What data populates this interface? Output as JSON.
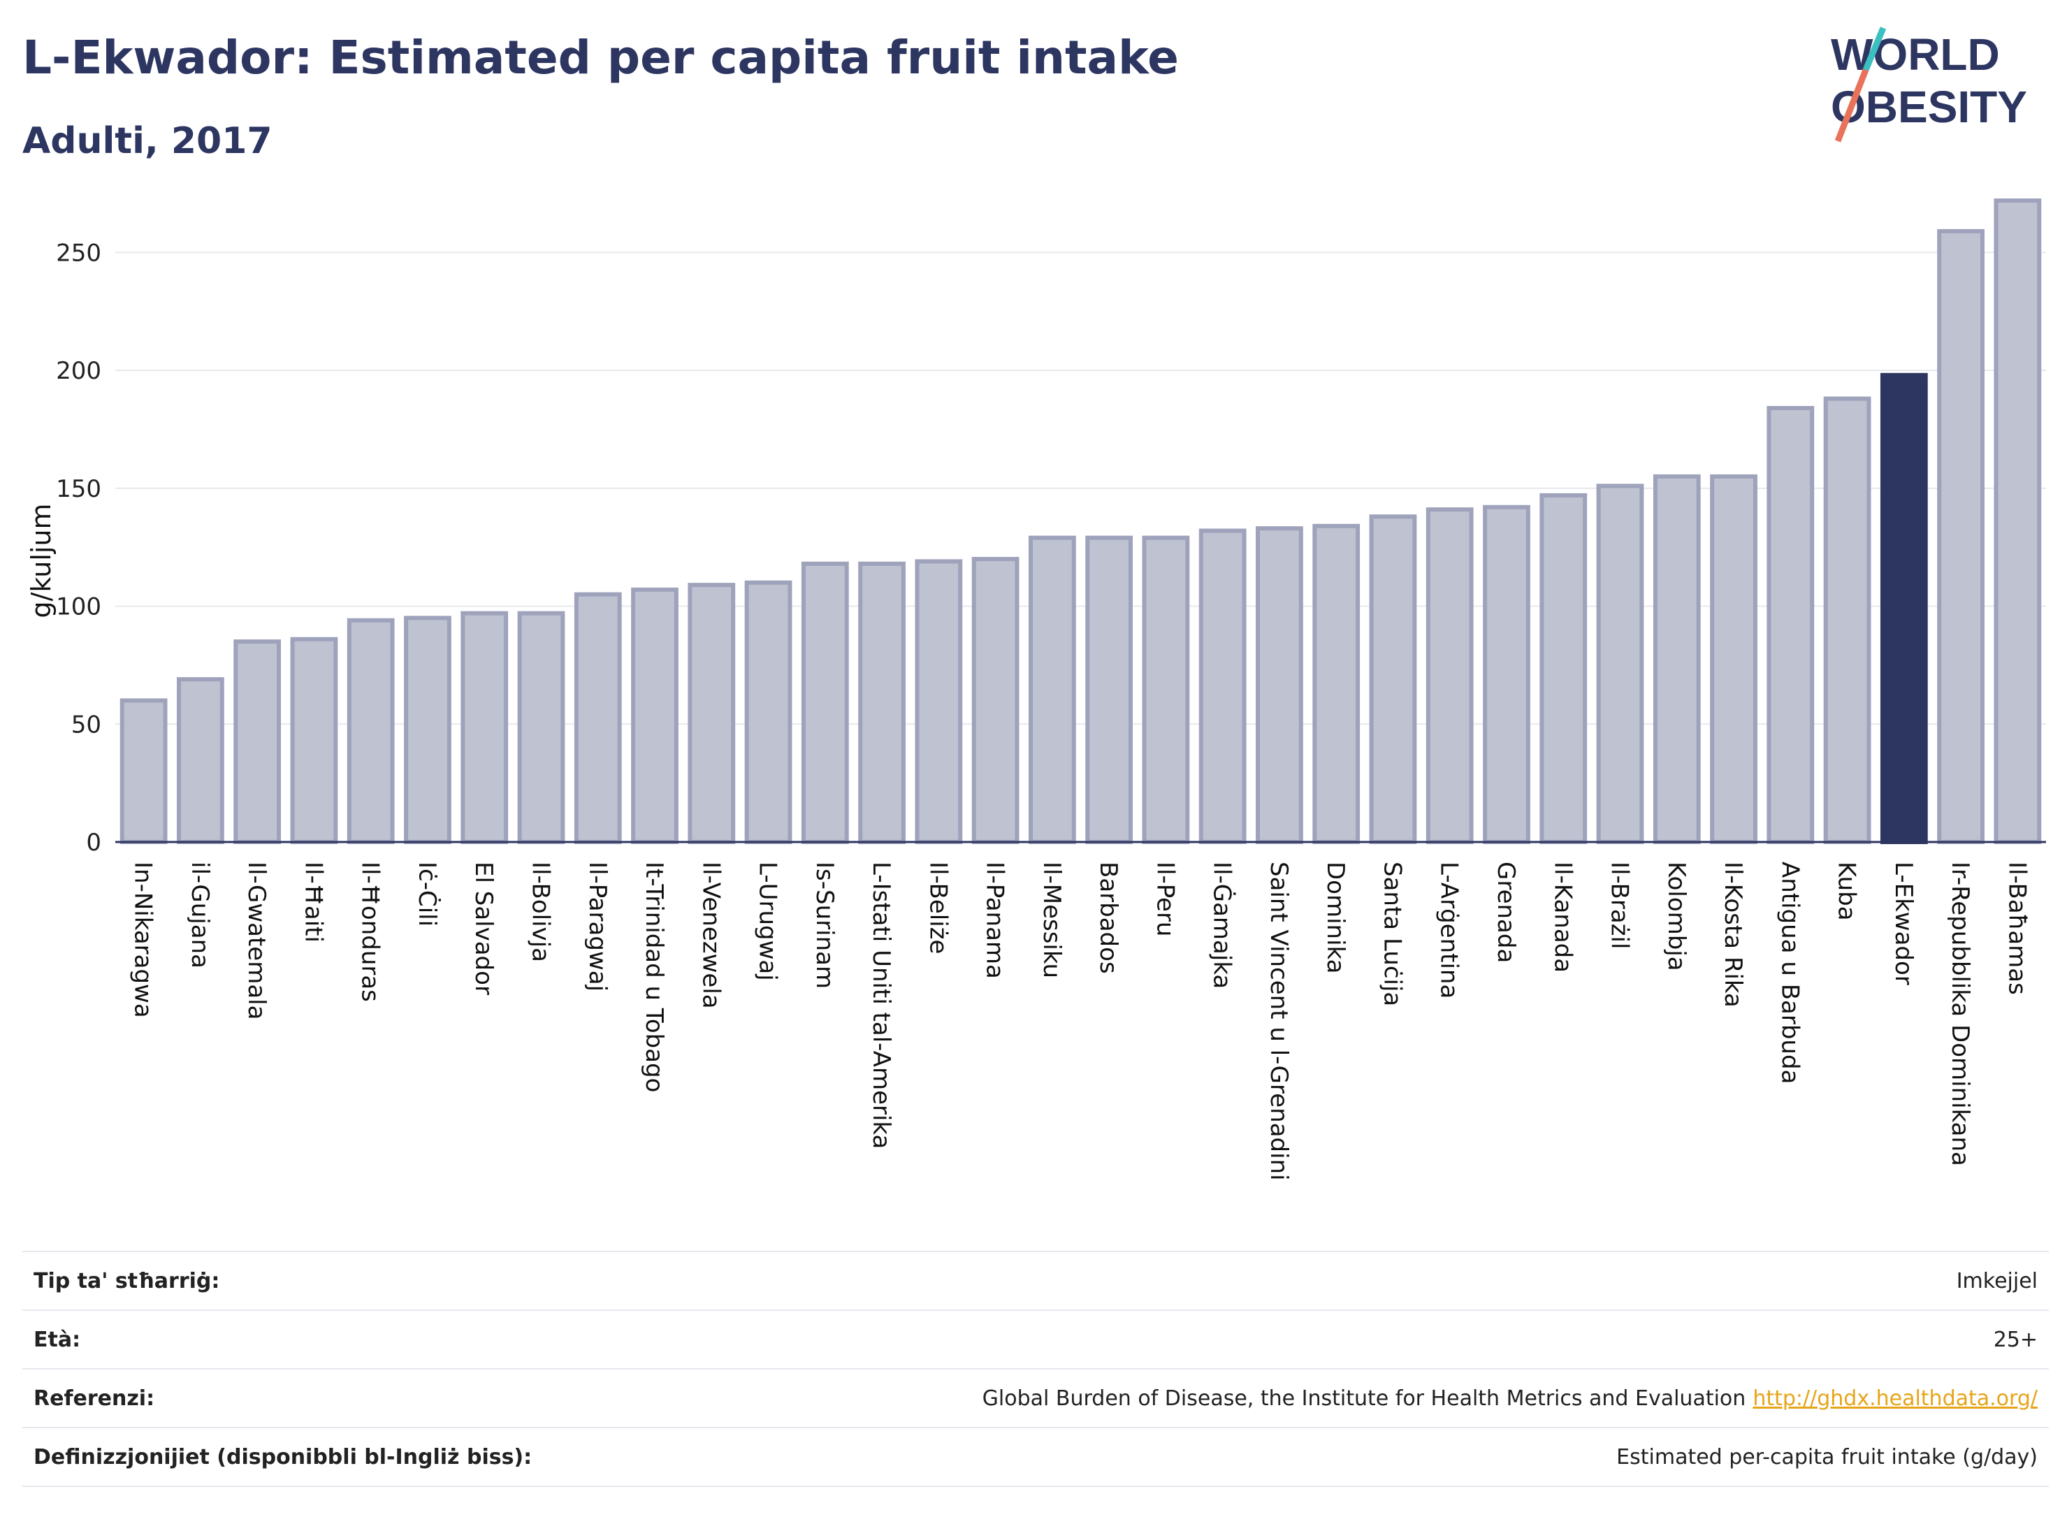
{
  "header": {
    "title": "L-Ekwador: Estimated per capita fruit intake",
    "subtitle": "Adulti, 2017"
  },
  "logo": {
    "line1": "WORLD",
    "line2": "OBESITY",
    "colors": {
      "text": "#2d3561",
      "slash_red": "#e8735a",
      "slash_teal": "#3bbfc0"
    }
  },
  "chart_data": {
    "type": "bar",
    "ylabel": "g/kuljum",
    "ylim": [
      0,
      280
    ],
    "yticks": [
      0,
      50,
      100,
      150,
      200,
      250
    ],
    "grid": true,
    "highlight": "L-Ekwador",
    "colors": {
      "bar": "#bfc2d0",
      "bar_edge": "#9ea2bb",
      "highlight": "#2d3561",
      "grid": "#e8e9ee",
      "axis": "#2d3561"
    },
    "categories": [
      "In-Nikaragwa",
      "il-Gujana",
      "Il-Gwatemala",
      "Il-Ħaiti",
      "Il-Ħonduras",
      "Iċ-Ċili",
      "El Salvador",
      "Il-Bolivja",
      "Il-Paragwaj",
      "It-Trinidad u Tobago",
      "Il-Venezwela",
      "L-Urugwaj",
      "Is-Surinam",
      "L-Istati Uniti tal-Amerika",
      "Il-Beliże",
      "Il-Panama",
      "Il-Messiku",
      "Barbados",
      "Il-Peru",
      "Il-Ġamajka",
      "Saint Vincent u l-Grenadini",
      "Dominika",
      "Santa Luċija",
      "L-Arġentina",
      "Grenada",
      "Il-Kanada",
      "Il-Brażil",
      "Kolombja",
      "Il-Kosta Rika",
      "Antigua u Barbuda",
      "Kuba",
      "L-Ekwador",
      "Ir-Repubblika Dominikana",
      "Il-Baħamas"
    ],
    "values": [
      60,
      69,
      85,
      86,
      94,
      95,
      97,
      97,
      105,
      107,
      109,
      110,
      118,
      118,
      119,
      120,
      129,
      129,
      129,
      132,
      133,
      134,
      138,
      141,
      142,
      147,
      151,
      155,
      155,
      184,
      188,
      198,
      259,
      272
    ]
  },
  "meta": {
    "rows": [
      {
        "label": "Tip ta' stħarriġ:",
        "value": "Imkejjel"
      },
      {
        "label": "Età:",
        "value": "25+"
      },
      {
        "label": "Referenzi:",
        "value": "Global Burden of Disease, the Institute for Health Metrics and Evaluation",
        "link": "http://ghdx.healthdata.org/"
      },
      {
        "label": "Definizzjonijiet (disponibbli bl-Ingliż biss):",
        "value": "Estimated per-capita fruit intake (g/day)"
      }
    ]
  }
}
